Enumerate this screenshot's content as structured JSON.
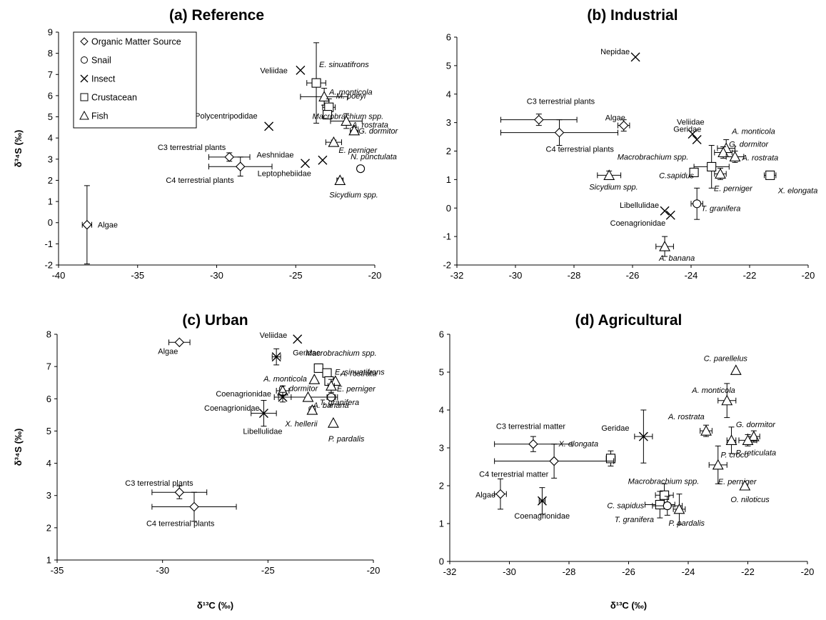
{
  "legend": {
    "items": [
      {
        "marker": "diamond",
        "label": "Organic Matter Source"
      },
      {
        "marker": "circle",
        "label": "Snail"
      },
      {
        "marker": "x",
        "label": "Insect"
      },
      {
        "marker": "square",
        "label": "Crustacean"
      },
      {
        "marker": "triangle",
        "label": "Fish"
      }
    ]
  },
  "chart_data": [
    {
      "type": "scatter",
      "title": "(a) Reference",
      "xlabel": "",
      "ylabel": "δ³⁴S (‰)",
      "xlim": [
        -40,
        -20
      ],
      "ylim": [
        -2,
        9
      ],
      "xticks": [
        -40,
        -35,
        -30,
        -25,
        -20
      ],
      "yticks": [
        -2,
        -1,
        0,
        1,
        2,
        3,
        4,
        5,
        6,
        7,
        8,
        9
      ],
      "points": [
        {
          "label": "Algae",
          "italic": false,
          "marker": "diamond",
          "x": -38.2,
          "y": -0.1,
          "xerr": 0.3,
          "yerr": 1.85
        },
        {
          "label": "C3 terrestrial plants",
          "italic": false,
          "marker": "diamond",
          "x": -29.2,
          "y": 3.1,
          "xerr": 1.3,
          "yerr": 0.2
        },
        {
          "label": "C4 terrestrial plants",
          "italic": false,
          "marker": "diamond",
          "x": -28.5,
          "y": 2.65,
          "xerr": 2.0,
          "yerr": 0.45
        },
        {
          "label": "Veliidae",
          "italic": false,
          "marker": "x",
          "x": -24.7,
          "y": 7.2
        },
        {
          "label": "Polycentripodidae",
          "italic": false,
          "marker": "x",
          "x": -26.7,
          "y": 4.55
        },
        {
          "label": "Aeshnidae",
          "italic": false,
          "marker": "x",
          "x": -24.4,
          "y": 2.8
        },
        {
          "label": "Leptophebiidae",
          "italic": false,
          "marker": "x",
          "x": -23.3,
          "y": 2.95
        },
        {
          "label": "E. sinuatifrons",
          "italic": true,
          "marker": "square",
          "x": -23.7,
          "y": 6.6,
          "xerr": 0.6,
          "yerr": 1.9
        },
        {
          "label": "A. monticola",
          "italic": true,
          "marker": "triangle",
          "x": -23.2,
          "y": 5.95,
          "xerr": 1.5,
          "yerr": 0.4
        },
        {
          "label": "M. poeyi",
          "italic": true,
          "marker": "square",
          "x": -22.9,
          "y": 5.45,
          "xerr": 0.4,
          "yerr": 0.4
        },
        {
          "label": "Macrobrachium spp.",
          "italic": true,
          "marker": "square",
          "x": -23.0,
          "y": 5.1
        },
        {
          "label": "A. rostrata",
          "italic": true,
          "marker": "triangle",
          "x": -21.8,
          "y": 4.8,
          "xerr": 1.0,
          "yerr": 0.35
        },
        {
          "label": "G. dormitor",
          "italic": true,
          "marker": "triangle",
          "x": -21.3,
          "y": 4.35,
          "xerr": 0.25,
          "yerr": 0.15
        },
        {
          "label": "E. perniger",
          "italic": true,
          "marker": "triangle",
          "x": -22.6,
          "y": 3.8,
          "xerr": 0.5,
          "yerr": 0.1
        },
        {
          "label": "N. punctulata",
          "italic": true,
          "marker": "circle",
          "x": -20.9,
          "y": 2.55,
          "xerr": 0.2,
          "yerr": 0.1
        },
        {
          "label": "Sicydium spp.",
          "italic": true,
          "marker": "triangle",
          "x": -22.2,
          "y": 2.0,
          "xerr": 0.2,
          "yerr": 0.1
        }
      ]
    },
    {
      "type": "scatter",
      "title": "(b) Industrial",
      "xlabel": "",
      "ylabel": "",
      "xlim": [
        -32,
        -20
      ],
      "ylim": [
        -2,
        6
      ],
      "xticks": [
        -32,
        -30,
        -28,
        -26,
        -24,
        -22,
        -20
      ],
      "yticks": [
        -2,
        -1,
        0,
        1,
        2,
        3,
        4,
        5,
        6
      ],
      "points": [
        {
          "label": "Nepidae",
          "italic": false,
          "marker": "x",
          "x": -25.9,
          "y": 5.3
        },
        {
          "label": "C3 terrestrial plants",
          "italic": false,
          "marker": "diamond",
          "x": -29.2,
          "y": 3.1,
          "xerr": 1.3,
          "yerr": 0.2
        },
        {
          "label": "C4 terrestrial plants",
          "italic": false,
          "marker": "diamond",
          "x": -28.5,
          "y": 2.65,
          "xerr": 2.0,
          "yerr": 0.45
        },
        {
          "label": "Algae",
          "italic": false,
          "marker": "diamond",
          "x": -26.3,
          "y": 2.9,
          "xerr": 0.2,
          "yerr": 0.2
        },
        {
          "label": "Veliidae",
          "italic": false,
          "marker": "x",
          "x": -23.95,
          "y": 2.6
        },
        {
          "label": "Geridae",
          "italic": false,
          "marker": "x",
          "x": -23.8,
          "y": 2.4
        },
        {
          "label": "A. monticola",
          "italic": true,
          "marker": "triangle",
          "x": -22.8,
          "y": 2.1,
          "xerr": 0.3,
          "yerr": 0.3
        },
        {
          "label": "G. dormitor",
          "italic": true,
          "marker": "triangle",
          "x": -22.9,
          "y": 1.95,
          "xerr": 0.3,
          "yerr": 0.2
        },
        {
          "label": "A. rostrata",
          "italic": true,
          "marker": "triangle",
          "x": -22.5,
          "y": 1.8,
          "xerr": 0.3,
          "yerr": 0.2
        },
        {
          "label": "Macrobrachium spp.",
          "italic": true,
          "marker": "square",
          "x": -23.3,
          "y": 1.45,
          "xerr": 0.6,
          "yerr": 0.75
        },
        {
          "label": "C.sapidus",
          "italic": true,
          "marker": "square",
          "x": -23.9,
          "y": 1.25
        },
        {
          "label": "E. perniger",
          "italic": true,
          "marker": "triangle",
          "x": -23.0,
          "y": 1.2,
          "xerr": 0.2,
          "yerr": 0.2
        },
        {
          "label": "X. elongata",
          "italic": true,
          "marker": "square",
          "x": -21.3,
          "y": 1.15,
          "xerr": 0.2,
          "yerr": 0.1
        },
        {
          "label": "Sicydium spp.",
          "italic": true,
          "marker": "triangle",
          "x": -26.8,
          "y": 1.15,
          "xerr": 0.4,
          "yerr": 0.15
        },
        {
          "label": "Libellulidae",
          "italic": false,
          "marker": "x",
          "x": -24.9,
          "y": -0.1
        },
        {
          "label": "Coenagrionidae",
          "italic": false,
          "marker": "x",
          "x": -24.7,
          "y": -0.25
        },
        {
          "label": "T. granifera",
          "italic": true,
          "marker": "circle",
          "x": -23.8,
          "y": 0.15,
          "xerr": 0.2,
          "yerr": 0.55
        },
        {
          "label": "A. banana",
          "italic": true,
          "marker": "triangle",
          "x": -24.9,
          "y": -1.35,
          "xerr": 0.3,
          "yerr": 0.35
        }
      ]
    },
    {
      "type": "scatter",
      "title": "(c) Urban",
      "xlabel": "δ¹³C (‰)",
      "ylabel": "δ³⁴S (‰)",
      "xlim": [
        -35,
        -20
      ],
      "ylim": [
        1,
        8
      ],
      "xticks": [
        -35,
        -30,
        -25,
        -20
      ],
      "yticks": [
        1,
        2,
        3,
        4,
        5,
        6,
        7,
        8
      ],
      "points": [
        {
          "label": "Algae",
          "italic": false,
          "marker": "diamond",
          "x": -29.2,
          "y": 7.75,
          "xerr": 0.5,
          "yerr": 0.0
        },
        {
          "label": "Veliidae",
          "italic": false,
          "marker": "x",
          "x": -23.6,
          "y": 7.85
        },
        {
          "label": "Geridae",
          "italic": false,
          "marker": "x",
          "x": -24.6,
          "y": 7.3,
          "xerr": 0.2,
          "yerr": 0.25
        },
        {
          "label": "G. dormitor",
          "italic": true,
          "marker": "square",
          "x": -22.6,
          "y": 6.95
        },
        {
          "label": "Macrobrachium spp.",
          "italic": true,
          "marker": "square",
          "x": -22.2,
          "y": 6.8,
          "xerr": 0.2,
          "yerr": 0.1
        },
        {
          "label": "E. sinuatifrons",
          "italic": true,
          "marker": "square",
          "x": -22.1,
          "y": 6.55
        },
        {
          "label": "A. monticola",
          "italic": true,
          "marker": "triangle",
          "x": -22.8,
          "y": 6.6
        },
        {
          "label": "A. rostrata",
          "italic": true,
          "marker": "triangle",
          "x": -21.8,
          "y": 6.55
        },
        {
          "label": "E. perniger",
          "italic": true,
          "marker": "triangle",
          "x": -22.0,
          "y": 6.4,
          "xerr": 0.15,
          "yerr": 0.2
        },
        {
          "label": "T. granifera",
          "italic": true,
          "marker": "circle",
          "x": -22.0,
          "y": 6.05,
          "xerr": 0.2,
          "yerr": 0.1
        },
        {
          "label": "Coenagrionidae",
          "italic": false,
          "marker": "triangle",
          "x": -24.3,
          "y": 6.25,
          "xerr": 0.3,
          "yerr": 0.15
        },
        {
          "label": "Coenagrionidae",
          "italic": false,
          "marker": "x",
          "x": -24.3,
          "y": 6.05,
          "xerr": 0.4,
          "yerr": 0.15
        },
        {
          "label": "A. banana",
          "italic": true,
          "marker": "triangle",
          "x": -23.1,
          "y": 6.05,
          "xerr": 1.4,
          "yerr": 0.0
        },
        {
          "label": "X. hellerii",
          "italic": true,
          "marker": "triangle",
          "x": -22.9,
          "y": 5.65,
          "xerr": 0.15,
          "yerr": 0.1
        },
        {
          "label": "P. pardalis",
          "italic": true,
          "marker": "triangle",
          "x": -21.9,
          "y": 5.25
        },
        {
          "label": "Libellulidae",
          "italic": false,
          "marker": "x",
          "x": -25.2,
          "y": 5.55,
          "xerr": 0.6,
          "yerr": 0.4
        },
        {
          "label": "C3 terrestrial plants",
          "italic": false,
          "marker": "diamond",
          "x": -29.2,
          "y": 3.1,
          "xerr": 1.3,
          "yerr": 0.2
        },
        {
          "label": "C4 terrestrial plants",
          "italic": false,
          "marker": "diamond",
          "x": -28.5,
          "y": 2.65,
          "xerr": 2.0,
          "yerr": 0.45
        }
      ]
    },
    {
      "type": "scatter",
      "title": "(d) Agricultural",
      "xlabel": "δ¹³C (‰)",
      "ylabel": "",
      "xlim": [
        -32,
        -20
      ],
      "ylim": [
        0,
        6
      ],
      "xticks": [
        -32,
        -30,
        -28,
        -26,
        -24,
        -22,
        -20
      ],
      "yticks": [
        0,
        1,
        2,
        3,
        4,
        5,
        6
      ],
      "points": [
        {
          "label": "C. parellelus",
          "italic": true,
          "marker": "triangle",
          "x": -22.4,
          "y": 5.05
        },
        {
          "label": "A. monticola",
          "italic": true,
          "marker": "triangle",
          "x": -22.7,
          "y": 4.25,
          "xerr": 0.3,
          "yerr": 0.45
        },
        {
          "label": "A. rostrata",
          "italic": true,
          "marker": "triangle",
          "x": -23.4,
          "y": 3.45,
          "xerr": 0.2,
          "yerr": 0.15
        },
        {
          "label": "P. croco",
          "italic": true,
          "marker": "triangle",
          "x": -22.55,
          "y": 3.2,
          "xerr": 0.15,
          "yerr": 0.35
        },
        {
          "label": "G. dormitor",
          "italic": true,
          "marker": "triangle",
          "x": -21.8,
          "y": 3.3,
          "xerr": 0.2,
          "yerr": 0.15
        },
        {
          "label": "P. reticulata",
          "italic": true,
          "marker": "triangle",
          "x": -22.0,
          "y": 3.2,
          "xerr": 0.3,
          "yerr": 0.15
        },
        {
          "label": "E. perniger",
          "italic": true,
          "marker": "triangle",
          "x": -23.0,
          "y": 2.55,
          "xerr": 0.3,
          "yerr": 0.5
        },
        {
          "label": "O. niloticus",
          "italic": true,
          "marker": "triangle",
          "x": -22.1,
          "y": 2.0
        },
        {
          "label": "Geridae",
          "italic": false,
          "marker": "x",
          "x": -25.5,
          "y": 3.3,
          "xerr": 0.3,
          "yerr": 0.7
        },
        {
          "label": "X. elongata",
          "italic": true,
          "marker": "square",
          "x": -26.6,
          "y": 2.72,
          "xerr": 0.15,
          "yerr": 0.2
        },
        {
          "label": "C3 terrestrial matter",
          "italic": false,
          "marker": "diamond",
          "x": -29.2,
          "y": 3.1,
          "xerr": 1.3,
          "yerr": 0.2
        },
        {
          "label": "C4 terrestrial matter",
          "italic": false,
          "marker": "diamond",
          "x": -28.5,
          "y": 2.65,
          "xerr": 2.0,
          "yerr": 0.45
        },
        {
          "label": "Algae",
          "italic": false,
          "marker": "diamond",
          "x": -30.3,
          "y": 1.78,
          "xerr": 0.2,
          "yerr": 0.4
        },
        {
          "label": "Coenagrionidae",
          "italic": false,
          "marker": "x",
          "x": -28.9,
          "y": 1.6,
          "xerr": 0.1,
          "yerr": 0.35
        },
        {
          "label": "Macrobrachium spp.",
          "italic": true,
          "marker": "square",
          "x": -24.8,
          "y": 1.75,
          "xerr": 0.3,
          "yerr": 0.3
        },
        {
          "label": "C. sapidus",
          "italic": true,
          "marker": "square",
          "x": -24.95,
          "y": 1.5,
          "xerr": 0.5,
          "yerr": 0.35
        },
        {
          "label": "T. granifera",
          "italic": true,
          "marker": "circle",
          "x": -24.7,
          "y": 1.47,
          "xerr": 0.5,
          "yerr": 0.25
        },
        {
          "label": "P. pardalis",
          "italic": true,
          "marker": "triangle",
          "x": -24.3,
          "y": 1.38,
          "xerr": 0.2,
          "yerr": 0.4
        }
      ]
    }
  ]
}
